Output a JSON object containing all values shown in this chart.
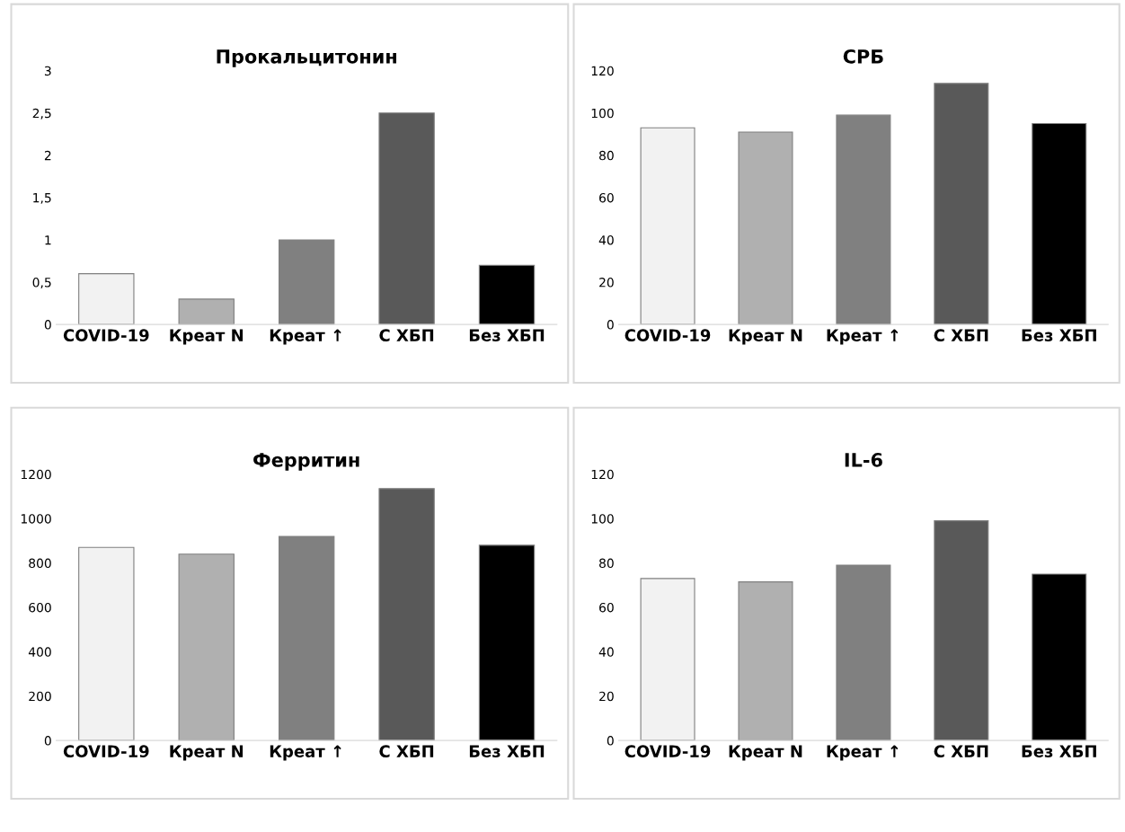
{
  "chart_data": [
    {
      "type": "bar",
      "title": "Прокальцитонин",
      "categories": [
        "COVID-19",
        "Креат N",
        "Креат ↑",
        "С ХБП",
        "Без ХБП"
      ],
      "values": [
        0.6,
        0.3,
        1.0,
        2.5,
        0.7
      ],
      "colors": [
        "#f2f2f2",
        "#b0b0b0",
        "#808080",
        "#595959",
        "#000000"
      ],
      "ylim": [
        0,
        3
      ],
      "yticks": [
        0,
        {
          "value": 0.5,
          "label": "0,5"
        },
        1,
        {
          "value": 1.5,
          "label": "1,5"
        },
        2,
        {
          "value": 2.5,
          "label": "2,5"
        },
        3
      ],
      "grid": false
    },
    {
      "type": "bar",
      "title": "СРБ",
      "categories": [
        "COVID-19",
        "Креат N",
        "Креат ↑",
        "С ХБП",
        "Без ХБП"
      ],
      "values": [
        93,
        91,
        99,
        114,
        95
      ],
      "colors": [
        "#f2f2f2",
        "#b0b0b0",
        "#808080",
        "#595959",
        "#000000"
      ],
      "ylim": [
        0,
        120
      ],
      "yticks": [
        0,
        20,
        40,
        60,
        80,
        100,
        120
      ],
      "grid": false
    },
    {
      "type": "bar",
      "title": "Ферритин",
      "categories": [
        "COVID-19",
        "Креат N",
        "Креат ↑",
        "С ХБП",
        "Без ХБП"
      ],
      "values": [
        870,
        840,
        920,
        1135,
        880
      ],
      "colors": [
        "#f2f2f2",
        "#b0b0b0",
        "#808080",
        "#595959",
        "#000000"
      ],
      "ylim": [
        0,
        1200
      ],
      "yticks": [
        0,
        200,
        400,
        600,
        800,
        1000,
        1200
      ],
      "grid": false
    },
    {
      "type": "bar",
      "title": "IL-6",
      "categories": [
        "COVID-19",
        "Креат N",
        "Креат ↑",
        "С ХБП",
        "Без ХБП"
      ],
      "values": [
        73,
        71.5,
        79,
        99,
        75
      ],
      "colors": [
        "#f2f2f2",
        "#b0b0b0",
        "#808080",
        "#595959",
        "#000000"
      ],
      "ylim": [
        0,
        120
      ],
      "yticks": [
        0,
        20,
        40,
        60,
        80,
        100,
        120
      ],
      "grid": false
    }
  ]
}
